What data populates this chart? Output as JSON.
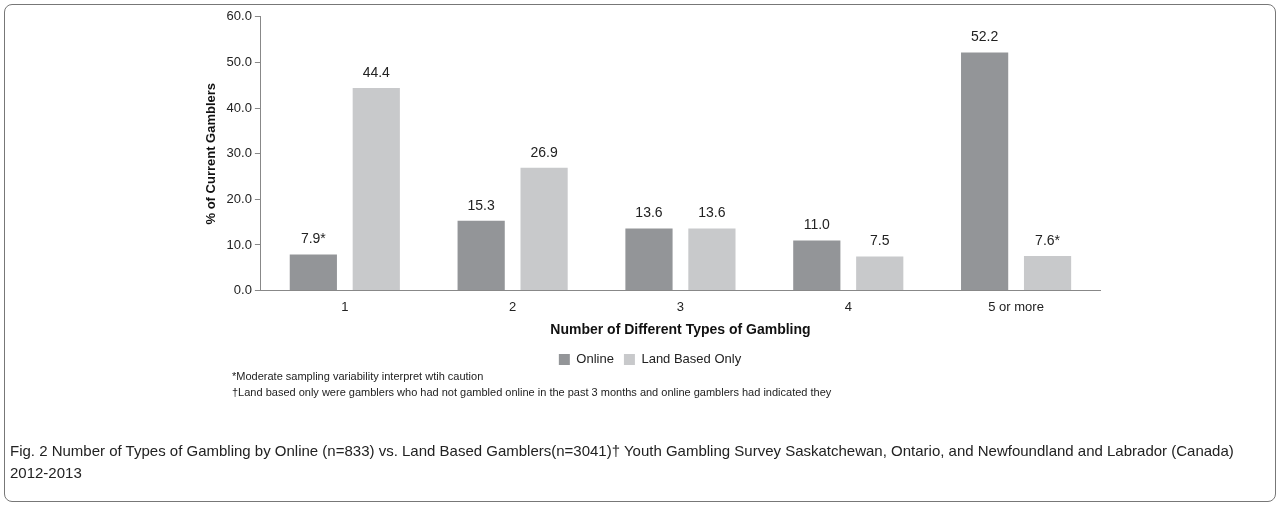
{
  "chart_data": {
    "type": "bar",
    "xlabel": "Number of Different Types of Gambling",
    "ylabel": "% of Current Gamblers",
    "categories": [
      "1",
      "2",
      "3",
      "4",
      "5 or more"
    ],
    "series": [
      {
        "name": "Online",
        "color": "#939598",
        "values": [
          7.9,
          15.3,
          13.6,
          11.0,
          52.2
        ],
        "value_labels": [
          "7.9*",
          "15.3",
          "13.6",
          "11.0",
          "52.2"
        ]
      },
      {
        "name": "Land Based Only",
        "color": "#c8c9cb",
        "values": [
          44.4,
          26.9,
          13.6,
          7.5,
          7.6
        ],
        "value_labels": [
          "44.4",
          "26.9",
          "13.6",
          "7.5",
          "7.6*"
        ]
      }
    ],
    "ylim": [
      0,
      60
    ],
    "yticks": [
      {
        "value": 0,
        "label": "0.0"
      },
      {
        "value": 10,
        "label": "10.0"
      },
      {
        "value": 20,
        "label": "20.0"
      },
      {
        "value": 30,
        "label": "30.0"
      },
      {
        "value": 40,
        "label": "40.0"
      },
      {
        "value": 50,
        "label": "50.0"
      },
      {
        "value": 60,
        "label": "60.0"
      }
    ],
    "grid": false,
    "legend": "bottom",
    "annotations": [
      "*Moderate sampling variability interpret wtih caution",
      "†Land based only were gamblers who had not gambled online in the past 3 months and online  gamblers had indicated they",
      "Fig. 2 Number of Types of Gambling by Online (n=833) vs. Land Based Gamblers(n=3041)† Youth Gambling Survey Saskatchewan, Ontario, and Newfoundland and Labrador (Canada) 2012-2013"
    ]
  }
}
